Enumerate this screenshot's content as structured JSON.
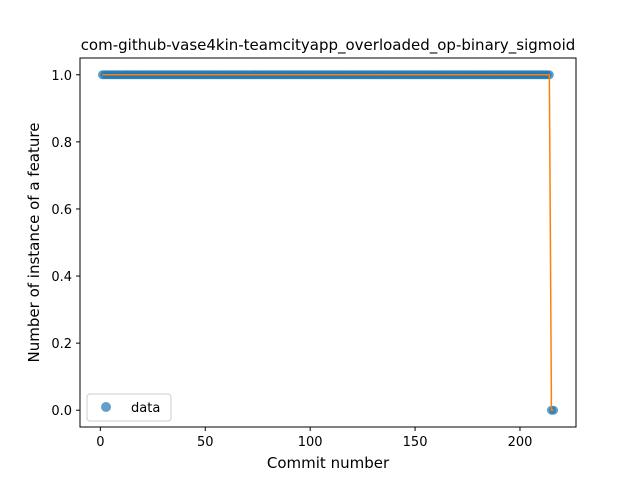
{
  "chart_data": {
    "type": "scatter",
    "title": "com-github-vase4kin-teamcityapp_overloaded_op-binary_sigmoid",
    "xlabel": "Commit number",
    "ylabel": "Number of instance of a feature",
    "xlim": [
      -9.7,
      226.7
    ],
    "ylim": [
      -0.05,
      1.05
    ],
    "xticks": [
      0,
      50,
      100,
      150,
      200
    ],
    "yticks": [
      0.0,
      0.2,
      0.4,
      0.6,
      0.8,
      1.0
    ],
    "ytick_labels": [
      "0.0",
      "0.2",
      "0.4",
      "0.6",
      "0.8",
      "1.0"
    ],
    "grid": false,
    "legend": {
      "placement": "lower-left",
      "entries": [
        "data"
      ]
    },
    "series": [
      {
        "name": "data",
        "kind": "scatter",
        "color": "#1f77b4",
        "segments": [
          {
            "x_start": 1,
            "x_end": 214,
            "y": 1
          },
          {
            "x_start": 215,
            "x_end": 216,
            "y": 0
          }
        ]
      },
      {
        "kind": "line",
        "color": "#ff7f0e",
        "x": [
          1,
          214,
          215,
          216
        ],
        "y": [
          1,
          1,
          0,
          0
        ]
      }
    ]
  }
}
